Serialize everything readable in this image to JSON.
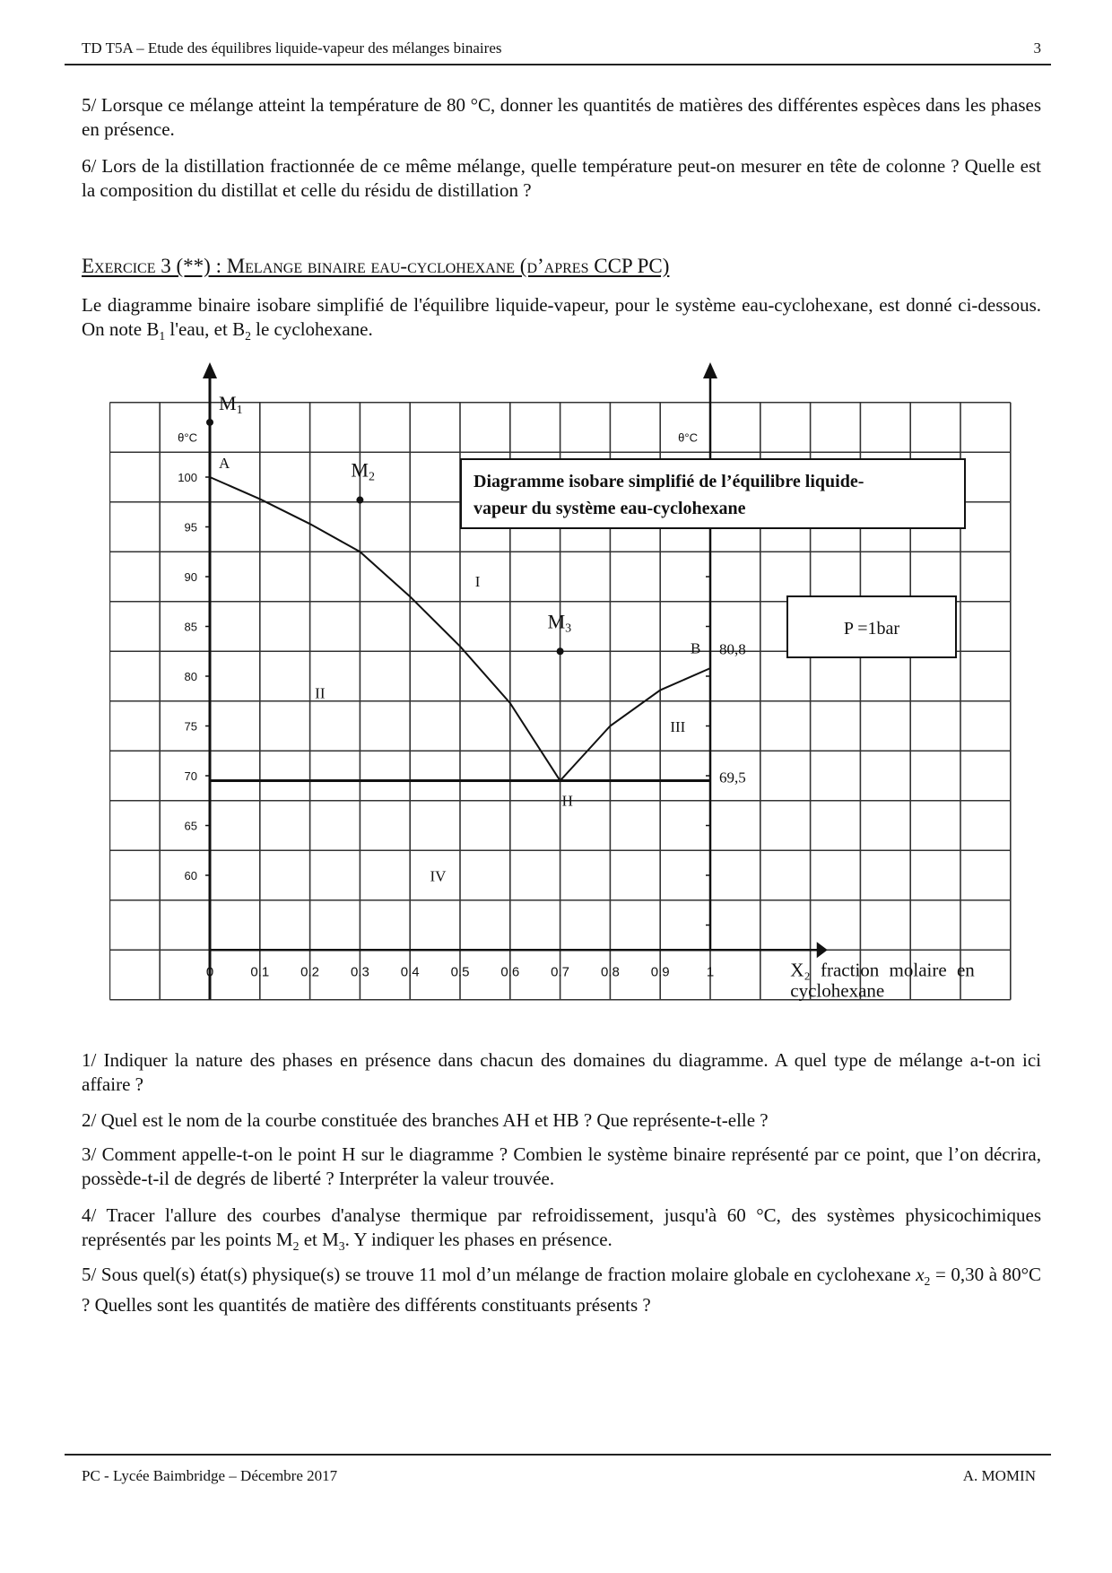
{
  "header": {
    "title": "TD T5A – Etude des équilibres liquide-vapeur des mélanges binaires",
    "page_number": "3"
  },
  "previous_questions": [
    "5/ Lorsque ce mélange atteint la température de 80 °C, donner les quantités de matières des différentes espèces dans les phases en présence.",
    "6/ Lors de la distillation fractionnée de ce même mélange, quelle température peut-on mesurer en tête de colonne ? Quelle est la composition du distillat et celle du résidu de distillation ?"
  ],
  "exercise": {
    "title": "Exercice 3 (**) : Melange binaire eau-cyclohexane (d’apres CCP PC)",
    "intro": {
      "part1": "Le diagramme binaire isobare simplifié de l'équilibre liquide-vapeur, pour le système eau-cyclohexane, est donné ci-dessous. On note B",
      "sub1": "1",
      "part2": " l'eau, et B",
      "sub2": "2",
      "part3": " le cyclohexane."
    },
    "questions": [
      {
        "text": "1/ Indiquer la nature des phases en présence dans chacun des domaines du diagramme. A quel type de mélange a-t-on ici affaire ?"
      },
      {
        "text": "2/ Quel est le nom de la courbe constituée des branches AH et HB ? Que représente-t-elle ?"
      },
      {
        "text": "3/ Comment appelle-t-on le point H sur le diagramme ? Combien le système binaire représenté par ce point, que l’on décrira, possède-t-il de degrés de liberté ? Interpréter la valeur trouvée."
      },
      {
        "p1": "4/ Tracer l'allure des courbes d'analyse thermique par refroidissement, jusqu'à 60 °C, des systèmes physicochimiques représentés par les points M",
        "s1": "2",
        "p2": " et M",
        "s2": "3",
        "p3": ". Y indiquer les phases en présence."
      },
      {
        "p1": "5/ Sous quel(s) état(s) physique(s) se trouve 11 mol d’un mélange de fraction molaire globale en cyclohexane ",
        "var": "x",
        "s1": "2",
        "p2": " = 0,30 à 80°C ? Quelles sont les quantités de matière des différents constituants présents ?"
      }
    ]
  },
  "chart_data": {
    "type": "line",
    "title": "Diagramme isobare simplifié de l’équilibre liquide-vapeur du système eau-cyclohexane",
    "title_lines": [
      "Diagramme isobare simplifié de l’équilibre liquide-",
      "vapeur du système eau-cyclohexane"
    ],
    "pressure_label": "P =1bar",
    "ylabel_left": "θ°C",
    "ylabel_right": "θ°C",
    "xlabel_line1": "X₂  fraction  molaire  en",
    "xlabel_line2": "cyclohexane",
    "xlim": [
      0,
      1
    ],
    "ylim": [
      55,
      105
    ],
    "grid": true,
    "x_ticks": [
      "0",
      "0.1",
      "0.2",
      "0.3",
      "0.4",
      "0.5",
      "0.6",
      "0.7",
      "0.8",
      "0.9",
      "1"
    ],
    "y_ticks": [
      "100",
      "95",
      "90",
      "85",
      "80",
      "75",
      "70",
      "65",
      "60"
    ],
    "right_axis_labels": [
      "80,8",
      "69,5"
    ],
    "series": [
      {
        "values_x": [
          0,
          0.1,
          0.2,
          0.3,
          0.4,
          0.5,
          0.6,
          0.7
        ],
        "values_y": [
          100,
          97.8,
          95.3,
          92.5,
          88,
          83,
          77.3,
          69.5
        ]
      },
      {
        "values_x": [
          0.7,
          0.8,
          0.9,
          1.0
        ],
        "values_y": [
          69.5,
          75,
          78.6,
          80.8
        ]
      },
      {
        "values_x": [
          0,
          1
        ],
        "values_y": [
          69.5,
          69.5
        ]
      }
    ],
    "points": [
      {
        "label": "M",
        "sub": "1",
        "x": 0,
        "y": 105.5
      },
      {
        "label": "M",
        "sub": "2",
        "x": 0.3,
        "y": 97.7
      },
      {
        "label": "M",
        "sub": "3",
        "x": 0.7,
        "y": 82.5
      }
    ],
    "point_labels": [
      "A",
      "B",
      "H"
    ],
    "domains": [
      "I",
      "II",
      "III",
      "IV"
    ],
    "line_color": "#111111"
  },
  "footer": {
    "left": "PC - Lycée Baimbridge – Décembre 2017",
    "right": "A. MOMIN"
  }
}
